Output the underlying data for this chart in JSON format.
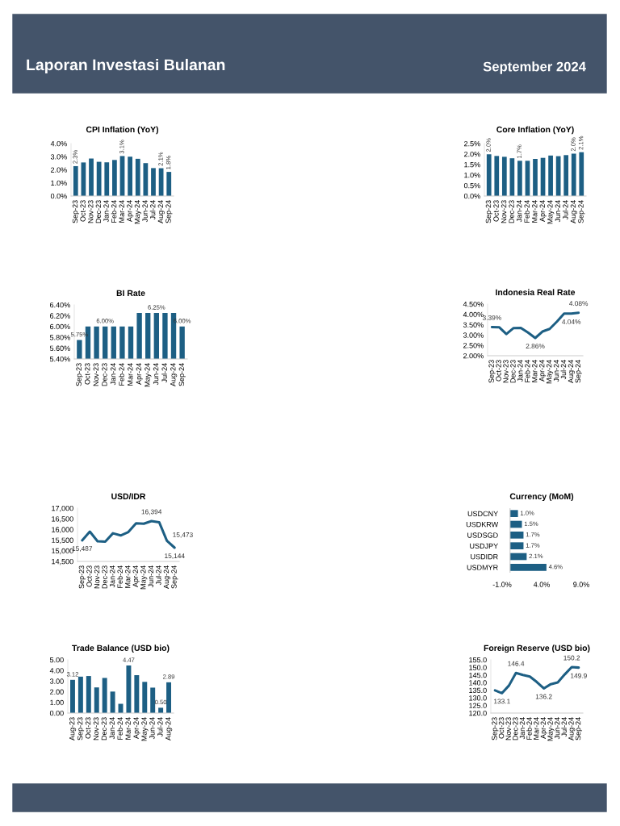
{
  "chart_data": [
    {
      "type": "other",
      "title": "Laporan Investasi Bulanan",
      "annotations": [
        "September 2024"
      ]
    },
    {
      "type": "bar",
      "title": "CPI Inflation (YoY)",
      "categories": [
        "Sep-23",
        "Oct-23",
        "Nov-23",
        "Dec-23",
        "Jan-24",
        "Feb-24",
        "Mar-24",
        "Apr-24",
        "May-24",
        "Jun-24",
        "Jul-24",
        "Aug-24",
        "Sep-24"
      ],
      "color": "#1d5f84",
      "values": [
        2.28,
        2.56,
        2.86,
        2.61,
        2.57,
        2.75,
        3.05,
        3.0,
        2.84,
        2.51,
        2.13,
        2.12,
        1.84
      ],
      "value_labels": [
        "2.3%",
        null,
        null,
        null,
        null,
        null,
        "3.1%",
        null,
        null,
        null,
        null,
        "2.1%",
        "1.8%"
      ],
      "ylim": [
        0,
        4
      ],
      "yticks": [
        {
          "value": 0,
          "label": "0.0%"
        },
        {
          "value": 1,
          "label": "1.0%"
        },
        {
          "value": 2,
          "label": "2.0%"
        },
        {
          "value": 3,
          "label": "3.0%"
        },
        {
          "value": 4,
          "label": "4.0%"
        }
      ],
      "grid": false
    },
    {
      "type": "bar",
      "title": "Core Inflation (YoY)",
      "categories": [
        "Sep-23",
        "Oct-23",
        "Nov-23",
        "Dec-23",
        "Jan-24",
        "Feb-24",
        "Mar-24",
        "Apr-24",
        "May-24",
        "Jun-24",
        "Jul-24",
        "Aug-24",
        "Sep-24"
      ],
      "color": "#1d5f84",
      "values": [
        1.99,
        1.91,
        1.87,
        1.8,
        1.68,
        1.68,
        1.77,
        1.82,
        1.93,
        1.9,
        1.95,
        2.02,
        2.09
      ],
      "value_labels": [
        "2.0%",
        null,
        null,
        null,
        "1.7%",
        null,
        null,
        null,
        null,
        null,
        null,
        "2.0%",
        "2.1%"
      ],
      "ylim": [
        0,
        2.5
      ],
      "yticks": [
        {
          "value": 0,
          "label": "0.0%"
        },
        {
          "value": 0.5,
          "label": "0.5%"
        },
        {
          "value": 1,
          "label": "1.0%"
        },
        {
          "value": 1.5,
          "label": "1.5%"
        },
        {
          "value": 2,
          "label": "2.0%"
        },
        {
          "value": 2.5,
          "label": "2.5%"
        }
      ],
      "grid": false
    },
    {
      "type": "bar",
      "title": "BI Rate",
      "categories": [
        "Sep-23",
        "Oct-23",
        "Nov-23",
        "Dec-23",
        "Jan-24",
        "Feb-24",
        "Mar-24",
        "Apr-24",
        "May-24",
        "Jun-24",
        "Jul-24",
        "Aug-24",
        "Sep-24"
      ],
      "color": "#1d5f84",
      "values": [
        5.75,
        6.0,
        6.0,
        6.0,
        6.0,
        6.0,
        6.0,
        6.25,
        6.25,
        6.25,
        6.25,
        6.25,
        6.0
      ],
      "value_labels": [
        "5.75%",
        null,
        null,
        "6.00%",
        null,
        null,
        null,
        null,
        null,
        "6.25%",
        null,
        null,
        "6.00%"
      ],
      "ylim": [
        5.4,
        6.4
      ],
      "yticks": [
        {
          "value": 5.4,
          "label": "5.40%"
        },
        {
          "value": 5.6,
          "label": "5.60%"
        },
        {
          "value": 5.8,
          "label": "5.80%"
        },
        {
          "value": 6.0,
          "label": "6.00%"
        },
        {
          "value": 6.2,
          "label": "6.20%"
        },
        {
          "value": 6.4,
          "label": "6.40%"
        }
      ],
      "grid": false
    },
    {
      "type": "line",
      "title": "Indonesia Real Rate",
      "categories": [
        "Sep-23",
        "Oct-23",
        "Nov-23",
        "Dec-23",
        "Jan-24",
        "Feb-24",
        "Mar-24",
        "Apr-24",
        "May-24",
        "Jun-24",
        "Jul-24",
        "Aug-24",
        "Sep-24"
      ],
      "color": "#1d5f84",
      "values": [
        3.39,
        3.38,
        3.05,
        3.34,
        3.35,
        3.12,
        2.86,
        3.17,
        3.3,
        3.65,
        4.04,
        4.04,
        4.08
      ],
      "value_labels": [
        "3.39%",
        null,
        null,
        null,
        null,
        null,
        "2.86%",
        null,
        null,
        null,
        null,
        "4.04%",
        "4.08%"
      ],
      "ylim": [
        2,
        4.5
      ],
      "yticks": [
        {
          "value": 2,
          "label": "2.00%"
        },
        {
          "value": 2.5,
          "label": "2.50%"
        },
        {
          "value": 3,
          "label": "3.00%"
        },
        {
          "value": 3.5,
          "label": "3.50%"
        },
        {
          "value": 4,
          "label": "4.00%"
        },
        {
          "value": 4.5,
          "label": "4.50%"
        }
      ],
      "grid": false,
      "marker": "none",
      "line_style": "solid"
    },
    {
      "type": "line",
      "title": "USD/IDR",
      "categories": [
        "Sep-23",
        "Oct-23",
        "Nov-23",
        "Dec-23",
        "Jan-24",
        "Feb-24",
        "Mar-24",
        "Apr-24",
        "May-24",
        "Jun-24",
        "Jul-24",
        "Aug-24",
        "Sep-24"
      ],
      "color": "#1d5f84",
      "values": [
        15487,
        15900,
        15450,
        15430,
        15820,
        15720,
        15880,
        16290,
        16270,
        16394,
        16340,
        15473,
        15144
      ],
      "value_labels": [
        "15,487",
        null,
        null,
        null,
        null,
        null,
        null,
        null,
        null,
        "16,394",
        null,
        "15,473",
        "15,144"
      ],
      "ylim": [
        14500,
        17000
      ],
      "yticks": [
        {
          "value": 14500,
          "label": "14,500"
        },
        {
          "value": 15000,
          "label": "15,000"
        },
        {
          "value": 15500,
          "label": "15,500"
        },
        {
          "value": 16000,
          "label": "16,000"
        },
        {
          "value": 16500,
          "label": "16,500"
        },
        {
          "value": 17000,
          "label": "17,000"
        }
      ],
      "grid": false,
      "marker": "none",
      "line_style": "solid"
    },
    {
      "type": "bar",
      "orientation": "horizontal",
      "title": "Currency (MoM)",
      "categories": [
        "USDCNY",
        "USDKRW",
        "USDSGD",
        "USDJPY",
        "USDIDR",
        "USDMYR"
      ],
      "color": "#1d5f84",
      "values": [
        1.0,
        1.5,
        1.7,
        1.7,
        2.1,
        4.6
      ],
      "value_labels": [
        "1.0%",
        "1.5%",
        "1.7%",
        "1.7%",
        "2.1%",
        "4.6%"
      ],
      "xlim": [
        -1,
        9
      ],
      "xticks": [
        {
          "value": -1,
          "label": "-1.0%"
        },
        {
          "value": 4,
          "label": "4.0%"
        },
        {
          "value": 9,
          "label": "9.0%"
        }
      ],
      "grid": false
    },
    {
      "type": "bar",
      "title": "Trade Balance (USD bio)",
      "categories": [
        "Aug-23",
        "Sep-23",
        "Oct-23",
        "Nov-23",
        "Dec-23",
        "Jan-24",
        "Feb-24",
        "Mar-24",
        "Apr-24",
        "May-24",
        "Jun-24",
        "Jul-24",
        "Aug-24"
      ],
      "color": "#1d5f84",
      "values": [
        3.12,
        3.42,
        3.48,
        2.41,
        3.3,
        2.02,
        0.87,
        4.47,
        3.56,
        2.93,
        2.39,
        0.5,
        2.89
      ],
      "value_labels": [
        "3.12",
        null,
        null,
        null,
        null,
        null,
        null,
        "4.47",
        null,
        null,
        null,
        "0.50",
        "2.89"
      ],
      "ylim": [
        0,
        5
      ],
      "yticks": [
        {
          "value": 0,
          "label": "0.00"
        },
        {
          "value": 1,
          "label": "1.00"
        },
        {
          "value": 2,
          "label": "2.00"
        },
        {
          "value": 3,
          "label": "3.00"
        },
        {
          "value": 4,
          "label": "4.00"
        },
        {
          "value": 5,
          "label": "5.00"
        }
      ],
      "grid": false
    },
    {
      "type": "line",
      "title": "Foreign Reserve (USD bio)",
      "categories": [
        "Sep-23",
        "Oct-23",
        "Nov-23",
        "Dec-23",
        "Jan-24",
        "Feb-24",
        "Mar-24",
        "Apr-24",
        "May-24",
        "Jun-24",
        "Jul-24",
        "Aug-24",
        "Sep-24"
      ],
      "color": "#1d5f84",
      "values": [
        134.9,
        133.1,
        138.1,
        146.4,
        145.1,
        144.0,
        140.4,
        136.2,
        139.0,
        140.2,
        145.4,
        150.2,
        149.9
      ],
      "value_labels": [
        null,
        "133.1",
        null,
        "146.4",
        null,
        null,
        null,
        "136.2",
        null,
        null,
        null,
        "150.2",
        "149.9"
      ],
      "ylim": [
        120,
        155
      ],
      "yticks": [
        {
          "value": 120,
          "label": "120.0"
        },
        {
          "value": 125,
          "label": "125.0"
        },
        {
          "value": 130,
          "label": "130.0"
        },
        {
          "value": 135,
          "label": "135.0"
        },
        {
          "value": 140,
          "label": "140.0"
        },
        {
          "value": 145,
          "label": "145.0"
        },
        {
          "value": 150,
          "label": "150.0"
        },
        {
          "value": 155,
          "label": "155.0"
        }
      ],
      "grid": false,
      "marker": "none",
      "line_style": "solid"
    }
  ]
}
